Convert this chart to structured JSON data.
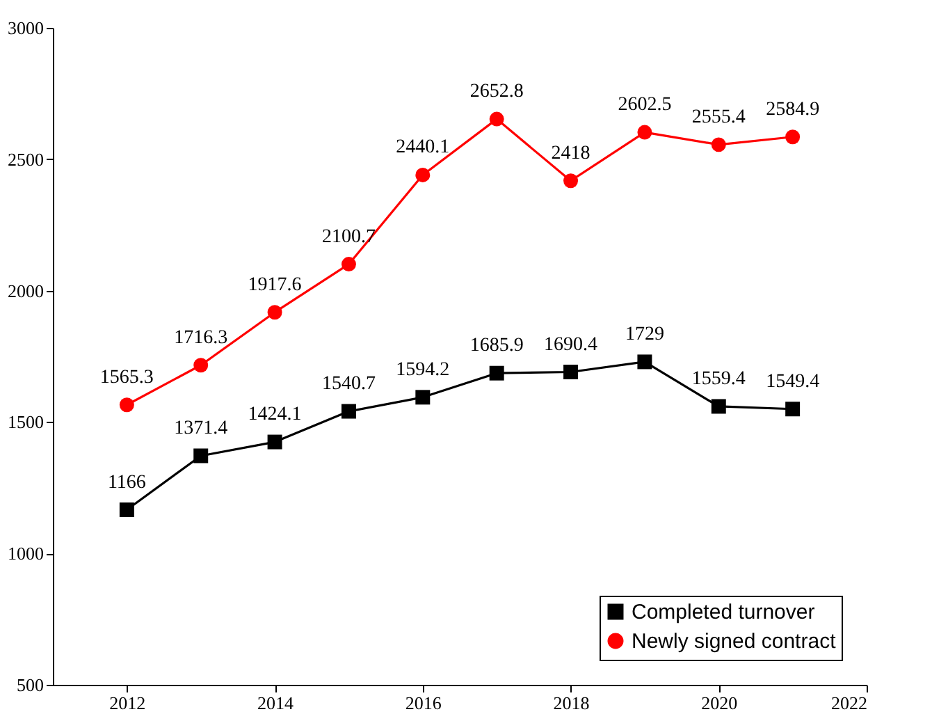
{
  "chart_data": {
    "type": "line",
    "x": [
      2012,
      2013,
      2014,
      2015,
      2016,
      2017,
      2018,
      2019,
      2020,
      2021
    ],
    "series": [
      {
        "name": "Completed turnover",
        "color": "#000000",
        "marker": "square",
        "values": [
          1166,
          1371.4,
          1424.1,
          1540.7,
          1594.2,
          1685.9,
          1690.4,
          1729,
          1559.4,
          1549.4
        ]
      },
      {
        "name": "Newly signed contract",
        "color": "#ff0000",
        "marker": "circle",
        "values": [
          1565.3,
          1716.3,
          1917.6,
          2100.7,
          2440.1,
          2652.8,
          2418,
          2602.5,
          2555.4,
          2584.9
        ]
      }
    ],
    "xlim": [
      2011,
      2022
    ],
    "xticks": [
      2012,
      2014,
      2016,
      2018,
      2020,
      2022
    ],
    "ylim": [
      500,
      3000
    ],
    "yticks": [
      500,
      1000,
      1500,
      2000,
      2500,
      3000
    ],
    "data_labels": true,
    "legend": "bottom right",
    "grid": false,
    "line_style": "solid"
  }
}
